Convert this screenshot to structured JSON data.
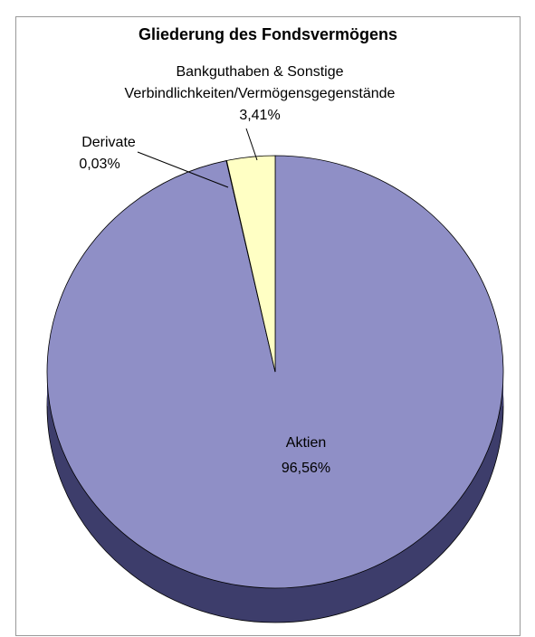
{
  "chart_data": {
    "type": "pie",
    "title": "Gliederung des Fondsvermögens",
    "categories": [
      "Aktien",
      "Derivate",
      "Bankguthaben & Sonstige Verbindlichkeiten/Vermögensgegenstände"
    ],
    "values": [
      96.56,
      0.03,
      3.41
    ],
    "value_labels": [
      "96,56%",
      "0,03%",
      "3,41%"
    ],
    "colors": [
      "#8f8fc6",
      "#c0c0e8",
      "#ffffc4"
    ],
    "side_color": "#3d3d6b"
  }
}
